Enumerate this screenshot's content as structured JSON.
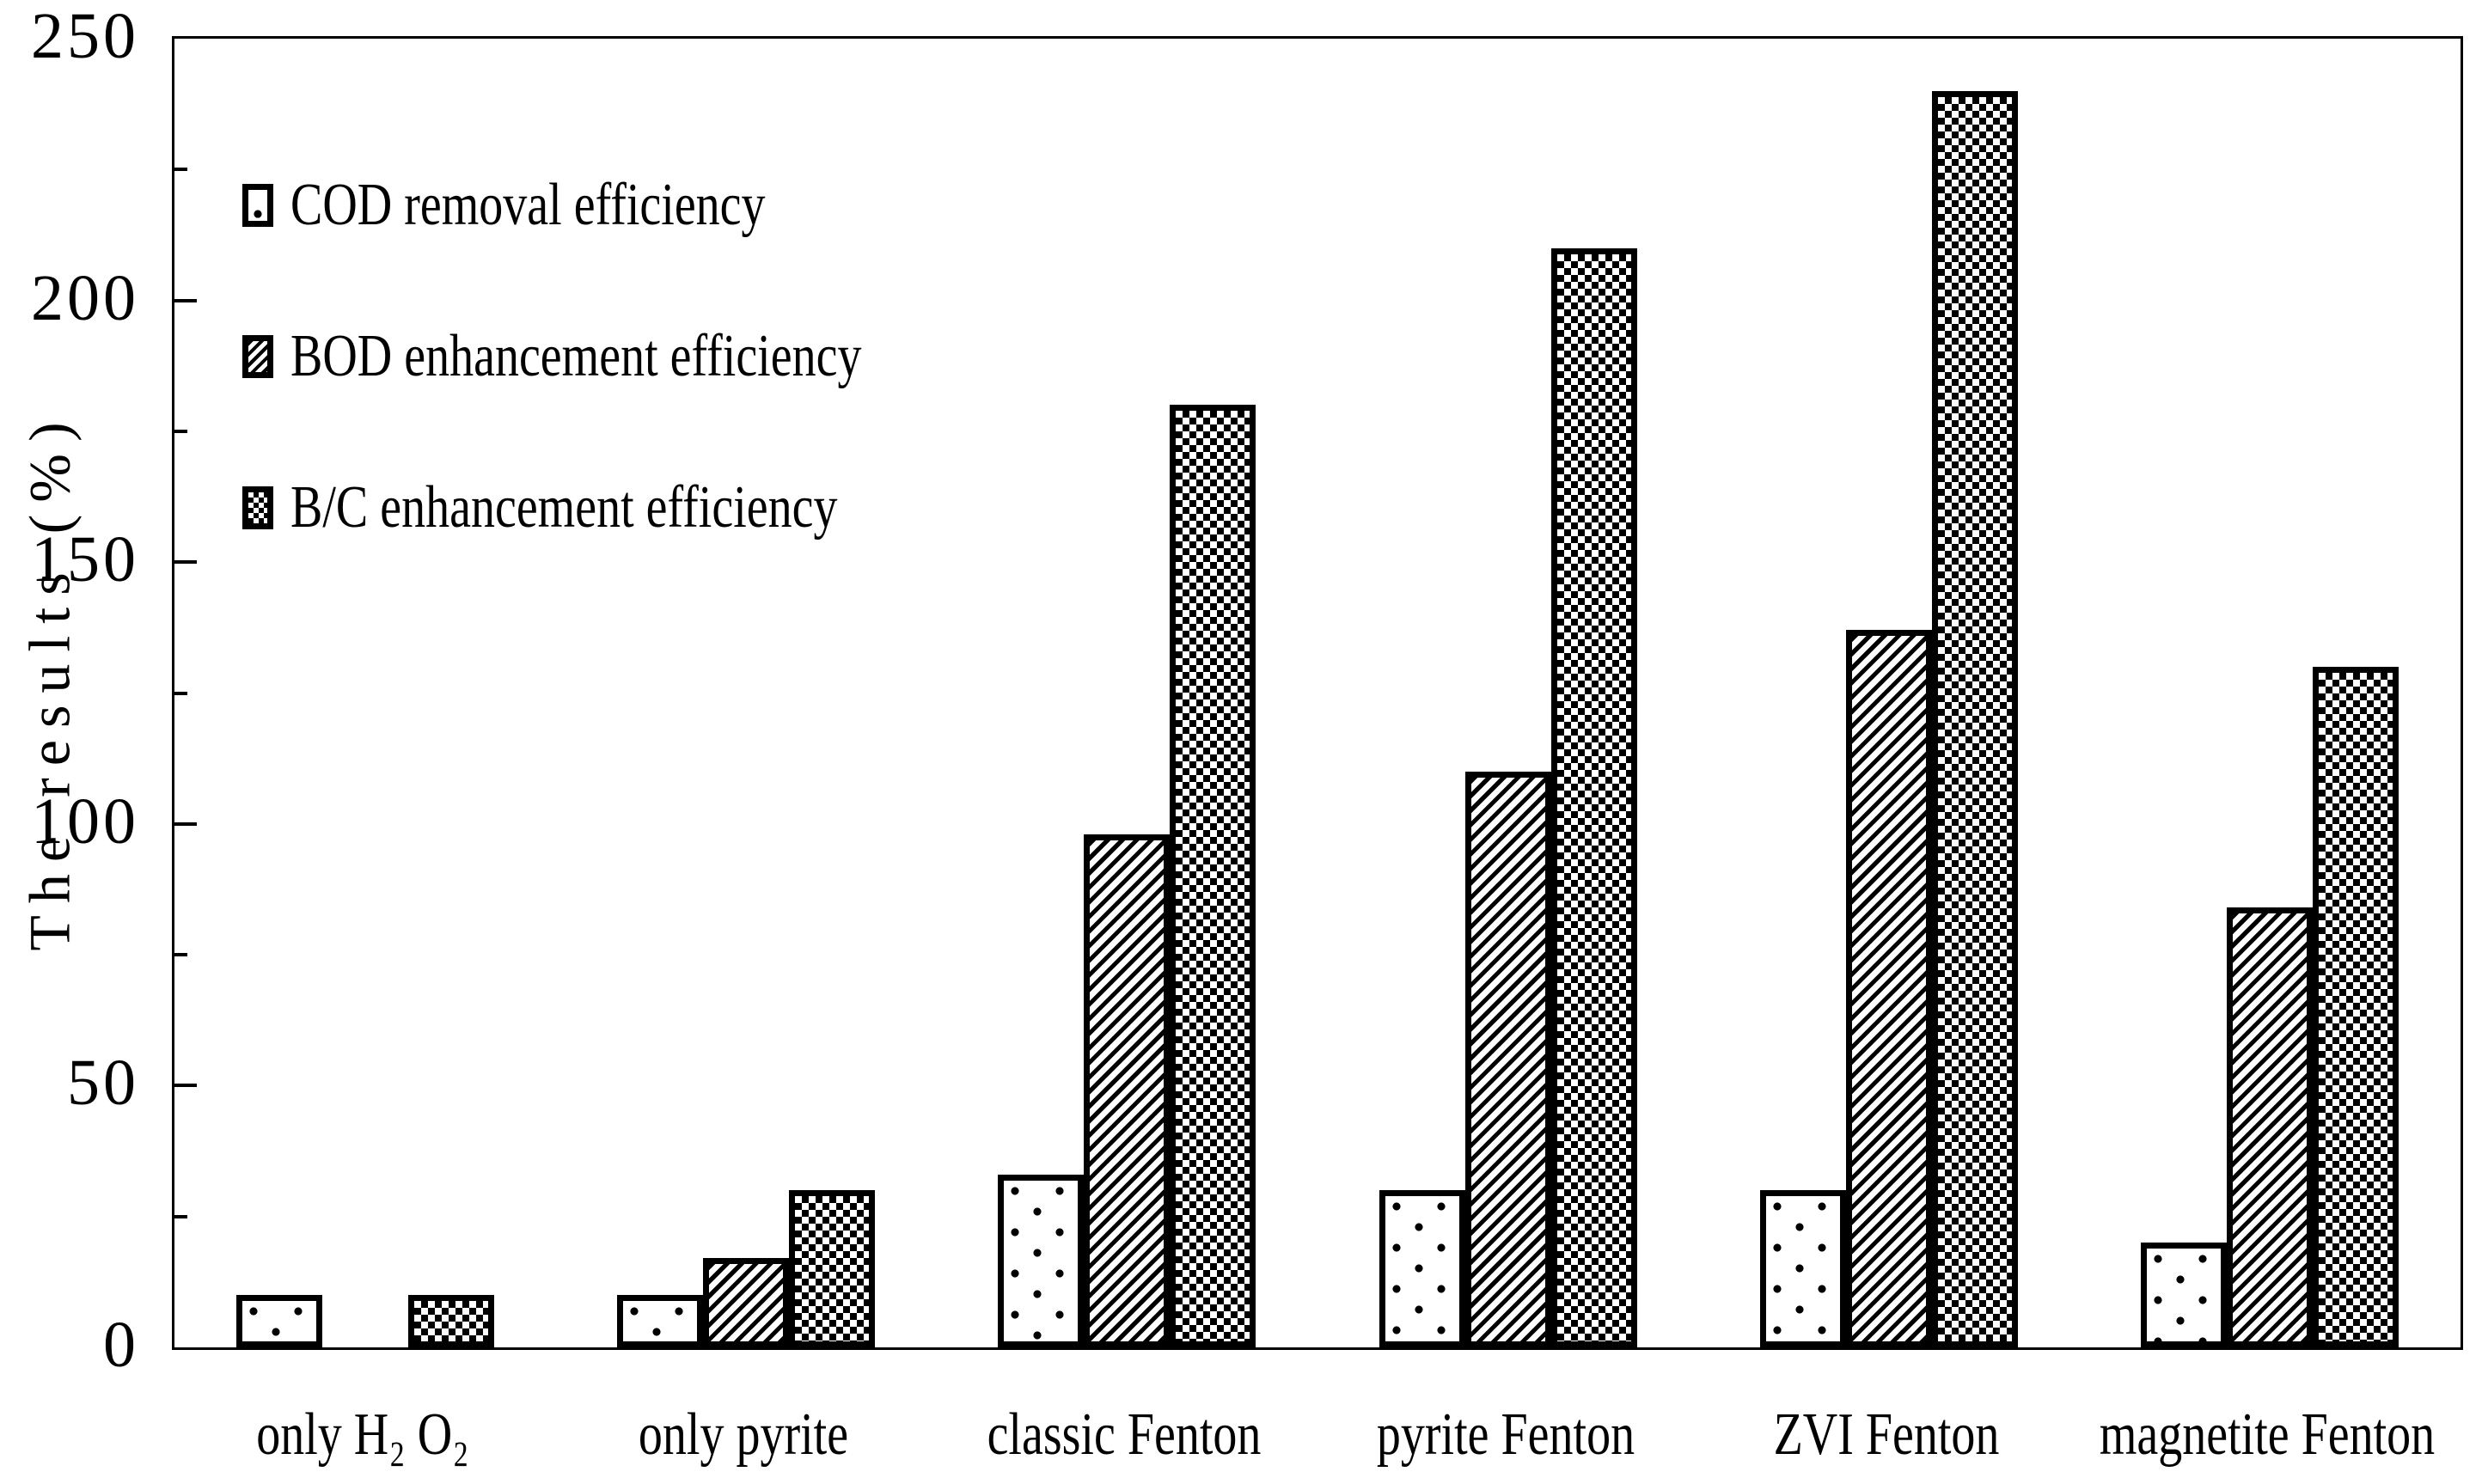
{
  "chart_data": {
    "type": "bar",
    "title": "",
    "xlabel": "",
    "ylabel": "The results (%)",
    "ylim": [
      0,
      250
    ],
    "y_major_ticks": [
      0,
      50,
      100,
      150,
      200,
      250
    ],
    "y_minor_ticks": [
      25,
      75,
      125,
      175,
      225
    ],
    "grid": false,
    "legend_position": "top-left-inside",
    "categories": [
      "only H₂ O₂",
      "only pyrite",
      "classic Fenton",
      "pyrite Fenton",
      "ZVI Fenton",
      "magnetite Fenton"
    ],
    "series": [
      {
        "name": "COD removal efficiency",
        "pattern": "sparse-dots",
        "values": [
          10,
          10,
          33,
          30,
          30,
          20
        ]
      },
      {
        "name": "BOD enhancement efficiency",
        "pattern": "diagonal-hatch",
        "values": [
          0,
          17,
          98,
          110,
          137,
          84
        ]
      },
      {
        "name": "B/C enhancement efficiency",
        "pattern": "checkerboard",
        "values": [
          10,
          30,
          180,
          210,
          240,
          130
        ]
      }
    ],
    "colors": {
      "foreground": "#000000",
      "background": "#ffffff"
    }
  }
}
